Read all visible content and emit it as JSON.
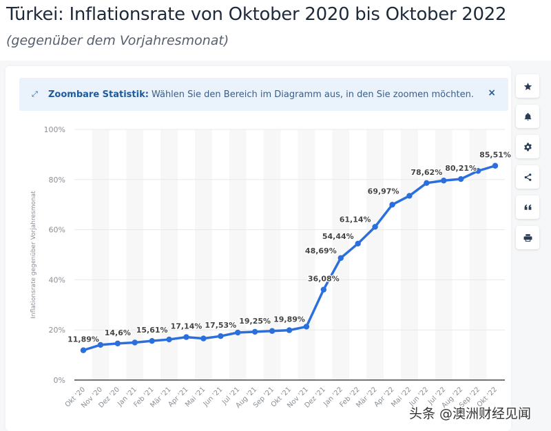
{
  "header": {
    "title": "Türkei: Inflationsrate von Oktober 2020 bis Oktober 2022",
    "subtitle": "(gegenüber dem Vorjahresmonat)"
  },
  "notice": {
    "icon": "expand-arrows-icon",
    "strong": "Zoombare Statistik:",
    "text": "Wählen Sie den Bereich im Diagramm aus, in den Sie zoomen möchten.",
    "close": "×"
  },
  "sidebar": {
    "buttons": [
      {
        "name": "favorite",
        "icon": "star-icon"
      },
      {
        "name": "notification",
        "icon": "bell-icon"
      },
      {
        "name": "settings",
        "icon": "gear-icon"
      },
      {
        "name": "share",
        "icon": "share-icon"
      },
      {
        "name": "cite",
        "icon": "quote-icon"
      },
      {
        "name": "print",
        "icon": "printer-icon"
      }
    ]
  },
  "watermark": "头条 @澳洲财经见闻",
  "colors": {
    "line": "#2a6fdb",
    "accent": "#1f5a9a",
    "grid": "#e8e8e8",
    "band": "#f7f7f8"
  },
  "chart_data": {
    "type": "line",
    "title": "Türkei: Inflationsrate von Oktober 2020 bis Oktober 2022",
    "subtitle": "(gegenüber dem Vorjahresmonat)",
    "xlabel": "",
    "ylabel": "Inflationsrate gegenüber Vorjahresmonat",
    "ylim": [
      0,
      100
    ],
    "yticks": [
      "0%",
      "20%",
      "40%",
      "60%",
      "80%",
      "100%"
    ],
    "ytick_values": [
      0,
      20,
      40,
      60,
      80,
      100
    ],
    "grid": true,
    "categories": [
      "Okt '20",
      "Nov '20",
      "Dez '20",
      "Jan '21",
      "Feb '21",
      "Mär '21",
      "Apr '21",
      "Mai '21",
      "Jun '21",
      "Jul '21",
      "Aug '21",
      "Sep '21",
      "Okt '21",
      "Nov '21",
      "Dez '21",
      "Jan '22",
      "Feb '22",
      "Mär '22",
      "Apr '22",
      "Mai '22",
      "Jun '22",
      "Jul '22",
      "Aug '22",
      "Sep '22",
      "Okt '22"
    ],
    "series": [
      {
        "name": "Inflationsrate",
        "values": [
          11.89,
          14.03,
          14.6,
          14.97,
          15.61,
          16.19,
          17.14,
          16.59,
          17.53,
          18.95,
          19.25,
          19.58,
          19.89,
          21.31,
          36.08,
          48.69,
          54.44,
          61.14,
          69.97,
          73.5,
          78.62,
          79.6,
          80.21,
          83.45,
          85.51
        ]
      }
    ],
    "data_labels": [
      {
        "index": 0,
        "text": "11,89%"
      },
      {
        "index": 2,
        "text": "14,6%"
      },
      {
        "index": 4,
        "text": "15,61%"
      },
      {
        "index": 6,
        "text": "17,14%"
      },
      {
        "index": 8,
        "text": "17,53%"
      },
      {
        "index": 10,
        "text": "19,25%"
      },
      {
        "index": 12,
        "text": "19,89%"
      },
      {
        "index": 14,
        "text": "36,08%"
      },
      {
        "index": 15,
        "text": "48,69%"
      },
      {
        "index": 16,
        "text": "54,44%"
      },
      {
        "index": 17,
        "text": "61,14%"
      },
      {
        "index": 18,
        "text": "69,97%"
      },
      {
        "index": 20,
        "text": "78,62%"
      },
      {
        "index": 22,
        "text": "80,21%"
      },
      {
        "index": 24,
        "text": "85,51%"
      }
    ]
  }
}
